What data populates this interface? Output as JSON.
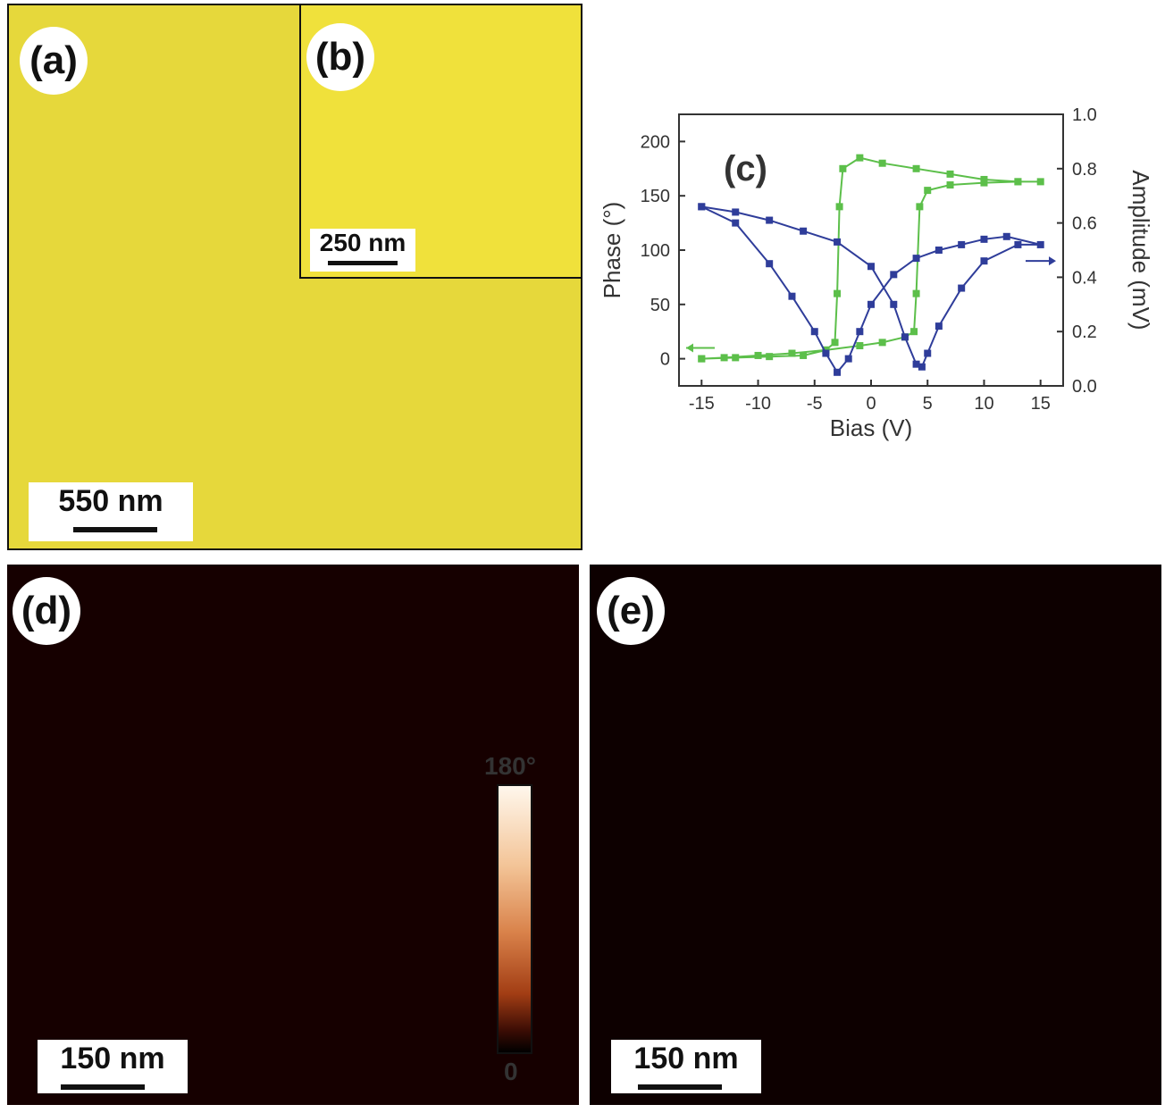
{
  "figure": {
    "panel_a": {
      "label": "(a)",
      "scale_bar": "550 nm"
    },
    "panel_b": {
      "label": "(b)",
      "scale_bar": "250 nm"
    },
    "panel_c": {
      "label": "(c)"
    },
    "panel_d": {
      "label": "(d)",
      "scale_bar": "150 nm",
      "colorbar_max": "180°",
      "colorbar_min": "0"
    },
    "panel_e": {
      "label": "(e)",
      "scale_bar": "150 nm"
    }
  },
  "colors": {
    "phase": "#5cbf4a",
    "amplitude": "#2f3d9a"
  },
  "chart_data": {
    "type": "line",
    "xlabel": "Bias (V)",
    "ylabel_left": "Phase (°)",
    "ylabel_right": "Amplitude (mV)",
    "xlim": [
      -17,
      17
    ],
    "ylim_left": [
      -25,
      225
    ],
    "ylim_right": [
      0.0,
      1.0
    ],
    "xticks": [
      "-15",
      "-10",
      "-5",
      "0",
      "5",
      "10",
      "15"
    ],
    "yticks_left": [
      "0",
      "50",
      "100",
      "150",
      "200"
    ],
    "yticks_right": [
      "0.0",
      "0.2",
      "0.4",
      "0.6",
      "0.8",
      "1.0"
    ],
    "series": [
      {
        "axis": "left",
        "x": [
          -15,
          -12,
          -9,
          -6,
          -4,
          -3.2,
          -3,
          -2.8,
          -2.5,
          -1,
          1,
          4,
          7,
          10,
          13,
          15,
          13,
          10,
          7,
          5,
          4.3,
          4,
          3.8,
          3,
          1,
          -1,
          -4,
          -7,
          -10,
          -13,
          -15
        ],
        "y": [
          0,
          1,
          2,
          3,
          8,
          15,
          60,
          140,
          175,
          185,
          180,
          175,
          170,
          165,
          163,
          163,
          163,
          162,
          160,
          155,
          140,
          60,
          25,
          20,
          15,
          12,
          8,
          5,
          3,
          1,
          0
        ]
      },
      {
        "axis": "right",
        "x": [
          -15,
          -12,
          -9,
          -7,
          -5,
          -4,
          -3,
          -2,
          -1,
          0,
          2,
          4,
          6,
          8,
          10,
          12,
          15,
          13,
          10,
          8,
          6,
          5,
          4.5,
          4,
          3,
          2,
          0,
          -3,
          -6,
          -9,
          -12,
          -15
        ],
        "y": [
          0.66,
          0.6,
          0.45,
          0.33,
          0.2,
          0.12,
          0.05,
          0.1,
          0.2,
          0.3,
          0.41,
          0.47,
          0.5,
          0.52,
          0.54,
          0.55,
          0.52,
          0.52,
          0.46,
          0.36,
          0.22,
          0.12,
          0.07,
          0.08,
          0.18,
          0.3,
          0.44,
          0.53,
          0.57,
          0.61,
          0.64,
          0.66
        ]
      }
    ]
  }
}
